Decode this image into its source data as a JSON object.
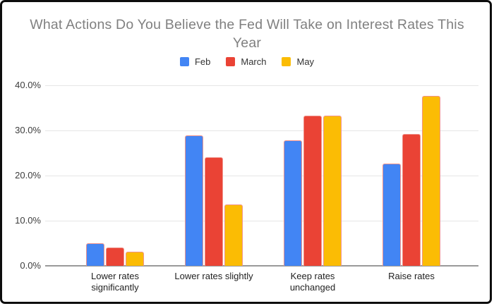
{
  "window": {
    "background": "#ffffff",
    "frame_border_color": "#0d0d0d"
  },
  "chart_data": {
    "type": "bar",
    "title": "What Actions Do You Believe the Fed Will Take on Interest Rates This Year",
    "title_color": "#808080",
    "categories": [
      "Lower rates significantly",
      "Lower rates slightly",
      "Keep rates unchanged",
      "Raise rates"
    ],
    "category_label_lines": [
      [
        "Lower rates",
        "significantly"
      ],
      [
        "Lower rates slightly"
      ],
      [
        "Keep rates",
        "unchanged"
      ],
      [
        "Raise rates"
      ]
    ],
    "series": [
      {
        "name": "Feb",
        "color": "#4285F4",
        "values": [
          5.0,
          28.9,
          27.8,
          22.6
        ]
      },
      {
        "name": "March",
        "color": "#EA4335",
        "values": [
          4.1,
          24.0,
          33.3,
          29.2
        ]
      },
      {
        "name": "May",
        "color": "#FBBC04",
        "values": [
          3.2,
          13.6,
          33.3,
          37.7
        ]
      }
    ],
    "ylim": [
      0,
      40
    ],
    "ytick_labels": [
      "0.0%",
      "10.0%",
      "20.0%",
      "30.0%",
      "40.0%"
    ],
    "grid": true,
    "legend_position": "top",
    "gridline_color": "#e6e6e6",
    "axis_line_color": "#9a9a9a",
    "bar_outline_color": "#f0938b"
  }
}
